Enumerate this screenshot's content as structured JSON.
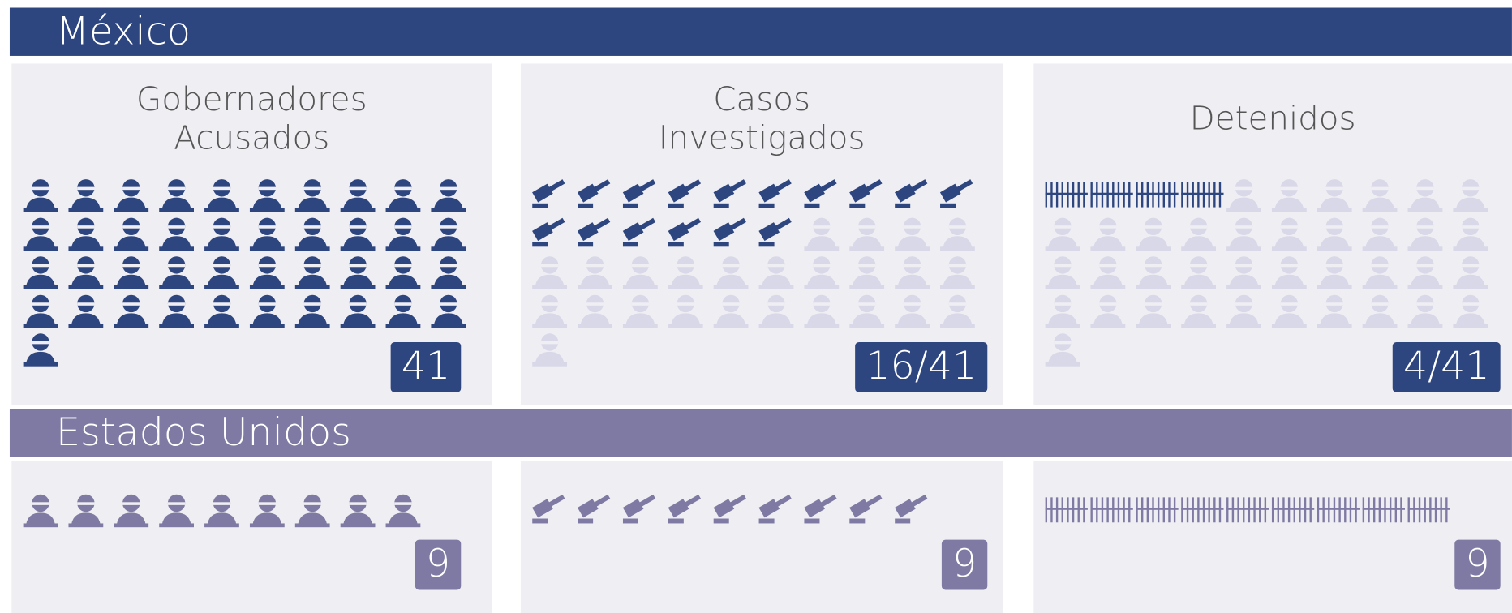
{
  "sections": [
    {
      "title": "México",
      "panels": [
        {
          "title": [
            "Gobernadores",
            "Acusados"
          ],
          "icon": "person",
          "count": 41,
          "total": 41,
          "badge": "41"
        },
        {
          "title": [
            "Casos",
            "Investigados"
          ],
          "icon": "gavel",
          "count": 16,
          "total": 41,
          "badge": "16/41"
        },
        {
          "title": [
            "Detenidos"
          ],
          "icon": "jail",
          "count": 4,
          "total": 41,
          "badge": "4/41"
        }
      ]
    },
    {
      "title": "Estados Unidos",
      "panels": [
        {
          "icon": "person",
          "count": 9,
          "total": 9,
          "badge": "9"
        },
        {
          "icon": "gavel",
          "count": 9,
          "total": 9,
          "badge": "9"
        },
        {
          "icon": "jail",
          "count": 9,
          "total": 9,
          "badge": "9"
        }
      ]
    }
  ]
}
